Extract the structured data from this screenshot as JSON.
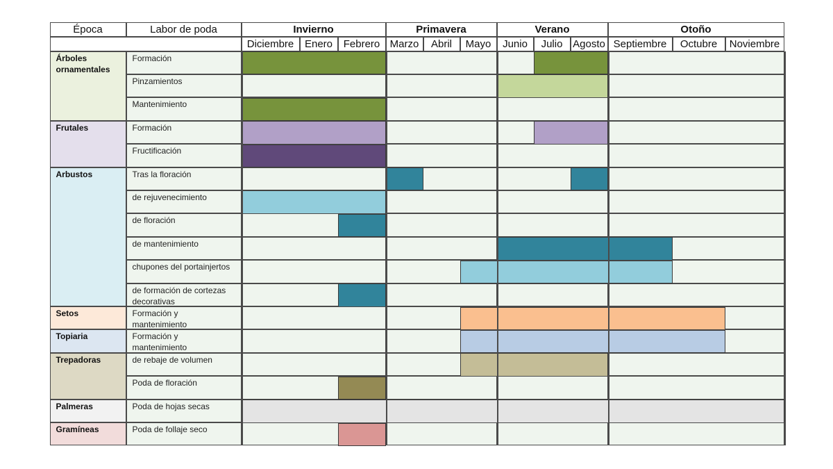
{
  "header": {
    "epoca_label": "Época",
    "labor_label": "Labor de poda",
    "seasons": [
      {
        "name": "Invierno",
        "months": [
          "Diciembre",
          "Enero",
          "Febrero"
        ]
      },
      {
        "name": "Primavera",
        "months": [
          "Marzo",
          "Abril",
          "Mayo"
        ]
      },
      {
        "name": "Verano",
        "months": [
          "Junio",
          "Julio",
          "Agosto"
        ]
      },
      {
        "name": "Otoño",
        "months": [
          "Septiembre",
          "Octubre",
          "Noviembre"
        ]
      }
    ]
  },
  "colors": {
    "cell_bg": "#eff5ee",
    "border": "#4a4a4a"
  },
  "groups": [
    {
      "name": "Árboles ornamentales",
      "bg": "#ebf1de",
      "rows": [
        {
          "task": "Formación",
          "periods": [
            {
              "from": "Diciembre",
              "to": "Febrero",
              "color": "#77933c"
            },
            {
              "from": "Julio",
              "to": "Agosto",
              "color": "#77933c"
            }
          ]
        },
        {
          "task": "Pinzamientos",
          "periods": [
            {
              "from": "Junio",
              "to": "Agosto",
              "color": "#c4d79b"
            }
          ]
        },
        {
          "task": "Mantenimiento",
          "periods": [
            {
              "from": "Diciembre",
              "to": "Febrero",
              "color": "#77933c"
            }
          ]
        }
      ]
    },
    {
      "name": "Frutales",
      "bg": "#e4dfec",
      "rows": [
        {
          "task": "Formación",
          "periods": [
            {
              "from": "Diciembre",
              "to": "Febrero",
              "color": "#b1a0c7"
            },
            {
              "from": "Julio",
              "to": "Agosto",
              "color": "#b1a0c7"
            }
          ]
        },
        {
          "task": "Fructificación",
          "periods": [
            {
              "from": "Diciembre",
              "to": "Febrero",
              "color": "#60497a"
            }
          ]
        }
      ]
    },
    {
      "name": "Arbustos",
      "bg": "#daeef3",
      "rows": [
        {
          "task": "Tras la floración",
          "periods": [
            {
              "from": "Marzo",
              "to": "Marzo",
              "color": "#31849b"
            },
            {
              "from": "Agosto",
              "to": "Agosto",
              "color": "#31849b"
            }
          ]
        },
        {
          "task": "de rejuvenecimiento",
          "periods": [
            {
              "from": "Diciembre",
              "to": "Febrero",
              "color": "#92cddc"
            }
          ]
        },
        {
          "task": "de floración",
          "periods": [
            {
              "from": "Febrero",
              "to": "Febrero",
              "color": "#31849b"
            }
          ]
        },
        {
          "task": "de mantenimiento",
          "periods": [
            {
              "from": "Junio",
              "to": "Septiembre",
              "color": "#31849b"
            }
          ]
        },
        {
          "task": "chupones del portainjertos",
          "periods": [
            {
              "from": "Mayo",
              "to": "Septiembre",
              "color": "#92cddc"
            }
          ]
        },
        {
          "task": "de formación de cortezas decorativas",
          "periods": [
            {
              "from": "Febrero",
              "to": "Febrero",
              "color": "#31849b"
            }
          ]
        }
      ]
    },
    {
      "name": "Setos",
      "bg": "#fde9d9",
      "rows": [
        {
          "task": "Formación y mantenimiento",
          "periods": [
            {
              "from": "Mayo",
              "to": "Octubre",
              "color": "#fabf8f"
            }
          ]
        }
      ]
    },
    {
      "name": "Topiaria",
      "bg": "#dce6f1",
      "rows": [
        {
          "task": "Formación y mantenimiento",
          "periods": [
            {
              "from": "Mayo",
              "to": "Octubre",
              "color": "#b8cce4"
            }
          ]
        }
      ]
    },
    {
      "name": "Trepadoras",
      "bg": "#ddd9c4",
      "rows": [
        {
          "task": "de rebaje de volumen",
          "periods": [
            {
              "from": "Mayo",
              "to": "Agosto",
              "color": "#c4bd97"
            }
          ]
        },
        {
          "task": "Poda de floración",
          "periods": [
            {
              "from": "Febrero",
              "to": "Febrero",
              "color": "#948a54"
            }
          ]
        }
      ]
    },
    {
      "name": "Palmeras",
      "bg": "#f2f2f2",
      "rows": [
        {
          "task": "Poda de hojas secas",
          "periods": [
            {
              "from": "Diciembre",
              "to": "Noviembre",
              "color": "#e4e4e4"
            }
          ]
        }
      ]
    },
    {
      "name": "Gramíneas",
      "bg": "#f2dcdb",
      "rows": [
        {
          "task": "Poda de follaje seco",
          "periods": [
            {
              "from": "Febrero",
              "to": "Febrero",
              "color": "#da9694"
            }
          ]
        }
      ]
    }
  ]
}
